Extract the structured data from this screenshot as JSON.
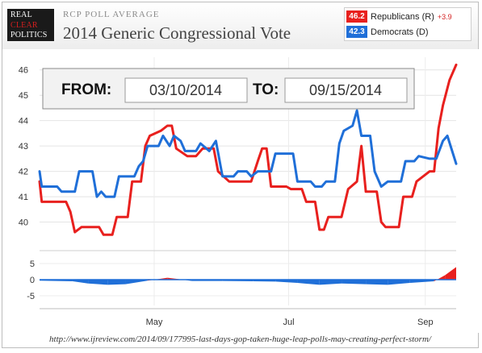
{
  "header": {
    "logo_lines": [
      "REAL",
      "CLEAR",
      "POLITICS"
    ],
    "supertitle": "RCP POLL AVERAGE",
    "title": "2014 Generic Congressional Vote"
  },
  "legend": [
    {
      "value": "46.2",
      "name": "Republicans (R)",
      "change": "+3.9",
      "color": "#e8201e"
    },
    {
      "value": "42.3",
      "name": "Democrats (D)",
      "change": "",
      "color": "#1f6fd8"
    }
  ],
  "date_range": {
    "from_label": "FROM:",
    "from_value": "03/10/2014",
    "to_label": "TO:",
    "to_value": "09/15/2014"
  },
  "footer_url": "http://www.ijreview.com/2014/09/177995-last-days-gop-taken-huge-leap-polls-may-creating-perfect-storm/",
  "chart_data": [
    {
      "type": "line",
      "x_range": [
        "2014-03-10",
        "2014-09-15"
      ],
      "x_ticks": [
        {
          "label": "May",
          "date": "2014-05-01"
        },
        {
          "label": "Jul",
          "date": "2014-07-01"
        },
        {
          "label": "Sep",
          "date": "2014-09-01"
        }
      ],
      "ylim": [
        39,
        46.5
      ],
      "y_ticks": [
        40,
        41,
        42,
        43,
        44,
        45,
        46
      ],
      "grid": true,
      "series": [
        {
          "name": "Republicans (R)",
          "color": "#e8201e",
          "points": [
            [
              "2014-03-10",
              41.6
            ],
            [
              "2014-03-11",
              40.8
            ],
            [
              "2014-03-22",
              40.8
            ],
            [
              "2014-03-24",
              40.4
            ],
            [
              "2014-03-26",
              39.6
            ],
            [
              "2014-03-29",
              39.8
            ],
            [
              "2014-04-06",
              39.8
            ],
            [
              "2014-04-08",
              39.5
            ],
            [
              "2014-04-12",
              39.5
            ],
            [
              "2014-04-14",
              40.2
            ],
            [
              "2014-04-19",
              40.2
            ],
            [
              "2014-04-21",
              41.6
            ],
            [
              "2014-04-25",
              41.6
            ],
            [
              "2014-04-27",
              43.0
            ],
            [
              "2014-04-29",
              43.4
            ],
            [
              "2014-05-04",
              43.6
            ],
            [
              "2014-05-07",
              43.8
            ],
            [
              "2014-05-09",
              43.8
            ],
            [
              "2014-05-11",
              42.9
            ],
            [
              "2014-05-16",
              42.6
            ],
            [
              "2014-05-20",
              42.6
            ],
            [
              "2014-05-23",
              42.9
            ],
            [
              "2014-05-28",
              42.9
            ],
            [
              "2014-05-30",
              42.0
            ],
            [
              "2014-06-04",
              41.6
            ],
            [
              "2014-06-14",
              41.6
            ],
            [
              "2014-06-17",
              42.4
            ],
            [
              "2014-06-19",
              42.9
            ],
            [
              "2014-06-21",
              42.9
            ],
            [
              "2014-06-23",
              41.4
            ],
            [
              "2014-06-30",
              41.4
            ],
            [
              "2014-07-02",
              41.3
            ],
            [
              "2014-07-07",
              41.3
            ],
            [
              "2014-07-09",
              40.8
            ],
            [
              "2014-07-13",
              40.8
            ],
            [
              "2014-07-15",
              39.7
            ],
            [
              "2014-07-17",
              39.7
            ],
            [
              "2014-07-19",
              40.2
            ],
            [
              "2014-07-25",
              40.2
            ],
            [
              "2014-07-28",
              41.3
            ],
            [
              "2014-08-01",
              41.6
            ],
            [
              "2014-08-03",
              43.0
            ],
            [
              "2014-08-05",
              41.2
            ],
            [
              "2014-08-10",
              41.2
            ],
            [
              "2014-08-12",
              40.0
            ],
            [
              "2014-08-14",
              39.8
            ],
            [
              "2014-08-20",
              39.8
            ],
            [
              "2014-08-22",
              41.0
            ],
            [
              "2014-08-26",
              41.0
            ],
            [
              "2014-08-28",
              41.6
            ],
            [
              "2014-09-03",
              42.0
            ],
            [
              "2014-09-05",
              42.0
            ],
            [
              "2014-09-07",
              43.7
            ],
            [
              "2014-09-09",
              44.6
            ],
            [
              "2014-09-12",
              45.6
            ],
            [
              "2014-09-15",
              46.2
            ]
          ]
        },
        {
          "name": "Democrats (D)",
          "color": "#1f6fd8",
          "points": [
            [
              "2014-03-10",
              42.0
            ],
            [
              "2014-03-11",
              41.4
            ],
            [
              "2014-03-18",
              41.4
            ],
            [
              "2014-03-20",
              41.2
            ],
            [
              "2014-03-26",
              41.2
            ],
            [
              "2014-03-28",
              42.0
            ],
            [
              "2014-04-03",
              42.0
            ],
            [
              "2014-04-05",
              41.0
            ],
            [
              "2014-04-07",
              41.2
            ],
            [
              "2014-04-09",
              41.0
            ],
            [
              "2014-04-13",
              41.0
            ],
            [
              "2014-04-15",
              41.8
            ],
            [
              "2014-04-22",
              41.8
            ],
            [
              "2014-04-24",
              42.2
            ],
            [
              "2014-04-26",
              42.4
            ],
            [
              "2014-04-28",
              43.0
            ],
            [
              "2014-05-03",
              43.0
            ],
            [
              "2014-05-05",
              43.4
            ],
            [
              "2014-05-08",
              43.0
            ],
            [
              "2014-05-10",
              43.4
            ],
            [
              "2014-05-13",
              43.2
            ],
            [
              "2014-05-15",
              42.8
            ],
            [
              "2014-05-20",
              42.8
            ],
            [
              "2014-05-22",
              43.1
            ],
            [
              "2014-05-26",
              42.8
            ],
            [
              "2014-05-29",
              43.2
            ],
            [
              "2014-06-01",
              41.8
            ],
            [
              "2014-06-06",
              41.8
            ],
            [
              "2014-06-08",
              42.0
            ],
            [
              "2014-06-12",
              42.0
            ],
            [
              "2014-06-14",
              41.8
            ],
            [
              "2014-06-17",
              42.0
            ],
            [
              "2014-06-23",
              42.0
            ],
            [
              "2014-06-25",
              42.7
            ],
            [
              "2014-06-28",
              42.7
            ],
            [
              "2014-07-03",
              42.7
            ],
            [
              "2014-07-05",
              41.6
            ],
            [
              "2014-07-11",
              41.6
            ],
            [
              "2014-07-13",
              41.4
            ],
            [
              "2014-07-16",
              41.4
            ],
            [
              "2014-07-18",
              41.6
            ],
            [
              "2014-07-22",
              41.6
            ],
            [
              "2014-07-24",
              43.1
            ],
            [
              "2014-07-26",
              43.6
            ],
            [
              "2014-07-30",
              43.8
            ],
            [
              "2014-08-01",
              44.4
            ],
            [
              "2014-08-03",
              43.4
            ],
            [
              "2014-08-07",
              43.4
            ],
            [
              "2014-08-09",
              42.0
            ],
            [
              "2014-08-12",
              41.4
            ],
            [
              "2014-08-15",
              41.6
            ],
            [
              "2014-08-21",
              41.6
            ],
            [
              "2014-08-23",
              42.4
            ],
            [
              "2014-08-27",
              42.4
            ],
            [
              "2014-08-29",
              42.6
            ],
            [
              "2014-09-03",
              42.5
            ],
            [
              "2014-09-06",
              42.5
            ],
            [
              "2014-09-09",
              43.2
            ],
            [
              "2014-09-11",
              43.4
            ],
            [
              "2014-09-15",
              42.3
            ]
          ]
        }
      ]
    },
    {
      "type": "area",
      "description_series": "Spread (R minus D)",
      "x_range": [
        "2014-03-10",
        "2014-09-15"
      ],
      "ylim": [
        -8,
        8
      ],
      "y_ticks": [
        5,
        0,
        -5
      ],
      "series": [
        {
          "positive_color": "#e8201e",
          "negative_color": "#1f6fd8",
          "points": [
            [
              "2014-03-10",
              -0.3
            ],
            [
              "2014-03-25",
              -0.5
            ],
            [
              "2014-04-01",
              -1.2
            ],
            [
              "2014-04-10",
              -1.6
            ],
            [
              "2014-04-18",
              -1.4
            ],
            [
              "2014-04-28",
              -0.3
            ],
            [
              "2014-05-07",
              0.6
            ],
            [
              "2014-05-12",
              0.2
            ],
            [
              "2014-05-18",
              -0.4
            ],
            [
              "2014-06-01",
              -0.4
            ],
            [
              "2014-06-15",
              -0.5
            ],
            [
              "2014-06-25",
              -0.6
            ],
            [
              "2014-07-05",
              -1.0
            ],
            [
              "2014-07-15",
              -1.6
            ],
            [
              "2014-07-25",
              -1.2
            ],
            [
              "2014-08-05",
              -1.4
            ],
            [
              "2014-08-15",
              -1.6
            ],
            [
              "2014-08-25",
              -1.0
            ],
            [
              "2014-09-05",
              -0.5
            ],
            [
              "2014-09-10",
              1.4
            ],
            [
              "2014-09-15",
              3.9
            ]
          ]
        }
      ]
    }
  ]
}
